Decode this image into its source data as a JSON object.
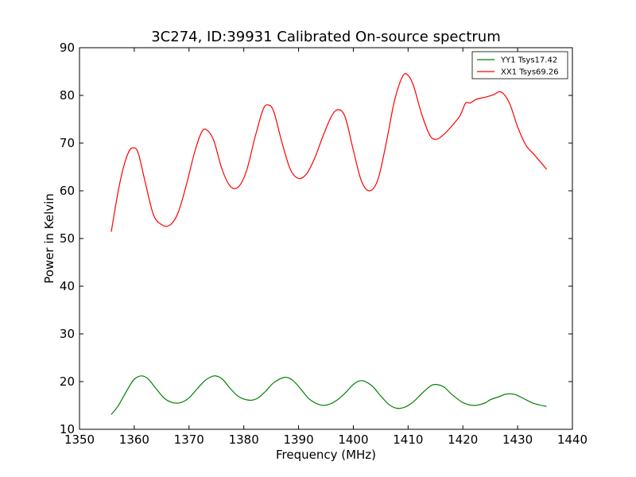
{
  "chart_data": {
    "type": "line",
    "title": "3C274, ID:39931 Calibrated On-source spectrum",
    "xlabel": "Frequency (MHz)",
    "ylabel": "Power in Kelvin",
    "xlim": [
      1350,
      1440
    ],
    "ylim": [
      10,
      90
    ],
    "xticks": [
      1350,
      1360,
      1370,
      1380,
      1390,
      1400,
      1410,
      1420,
      1430,
      1440
    ],
    "yticks": [
      10,
      20,
      30,
      40,
      50,
      60,
      70,
      80,
      90
    ],
    "grid": false,
    "legend_position": "top-right",
    "series": [
      {
        "name": "YY1 Tsys17.42",
        "color": "#008000",
        "x": [
          1355.8,
          1357.0,
          1358.0,
          1359.0,
          1360.0,
          1361.3,
          1362.5,
          1364.0,
          1365.5,
          1367.0,
          1368.5,
          1370.0,
          1371.5,
          1373.0,
          1374.6,
          1376.0,
          1377.5,
          1379.0,
          1381.0,
          1382.5,
          1384.0,
          1385.5,
          1387.5,
          1389.0,
          1390.5,
          1392.0,
          1394.0,
          1395.5,
          1397.0,
          1398.5,
          1400.0,
          1401.0,
          1402.0,
          1403.5,
          1405.0,
          1406.5,
          1408.0,
          1409.5,
          1411.0,
          1412.5,
          1414.0,
          1415.0,
          1416.5,
          1418.0,
          1420.0,
          1422.0,
          1424.0,
          1425.0,
          1426.5,
          1428.0,
          1429.5,
          1431.0,
          1433.0,
          1435.3
        ],
        "y": [
          13.1,
          14.8,
          16.8,
          18.8,
          20.5,
          21.2,
          20.6,
          18.5,
          16.5,
          15.6,
          15.6,
          16.6,
          18.5,
          20.3,
          21.2,
          20.6,
          18.6,
          16.9,
          16.1,
          16.5,
          18.0,
          19.8,
          20.9,
          20.2,
          18.3,
          16.3,
          15.1,
          15.2,
          16.1,
          17.6,
          19.4,
          20.1,
          20.1,
          19.0,
          17.0,
          15.2,
          14.4,
          14.7,
          15.8,
          17.5,
          19.0,
          19.4,
          18.9,
          17.3,
          15.6,
          15.0,
          15.5,
          16.2,
          16.8,
          17.4,
          17.3,
          16.5,
          15.4,
          14.8
        ]
      },
      {
        "name": "XX1 Tsys69.26",
        "color": "#ff0000",
        "x": [
          1355.8,
          1357.0,
          1358.0,
          1359.0,
          1359.8,
          1360.7,
          1362.0,
          1363.5,
          1365.0,
          1366.5,
          1368.0,
          1369.5,
          1371.0,
          1372.3,
          1373.2,
          1374.5,
          1376.0,
          1377.5,
          1379.0,
          1380.5,
          1382.0,
          1383.5,
          1384.5,
          1385.5,
          1387.0,
          1388.5,
          1390.0,
          1391.5,
          1393.0,
          1394.5,
          1396.0,
          1397.2,
          1398.5,
          1400.0,
          1401.5,
          1403.0,
          1404.5,
          1406.0,
          1407.5,
          1409.0,
          1410.0,
          1411.0,
          1412.5,
          1414.0,
          1415.2,
          1416.5,
          1418.0,
          1419.5,
          1420.5,
          1421.3,
          1422.5,
          1424.0,
          1425.5,
          1427.0,
          1428.5,
          1430.0,
          1431.5,
          1433.0,
          1435.3
        ],
        "y": [
          51.4,
          59.5,
          64.8,
          68.2,
          69.0,
          68.0,
          61.8,
          55.0,
          52.9,
          52.8,
          55.4,
          61.2,
          68.0,
          72.3,
          72.8,
          70.6,
          64.6,
          61.0,
          60.8,
          64.2,
          71.0,
          77.0,
          78.0,
          76.5,
          70.0,
          64.5,
          62.6,
          63.6,
          67.0,
          71.6,
          75.6,
          77.0,
          75.5,
          68.5,
          62.0,
          60.0,
          62.4,
          70.0,
          78.8,
          84.0,
          84.2,
          82.0,
          76.0,
          71.6,
          70.8,
          71.8,
          73.6,
          75.8,
          78.4,
          78.4,
          79.2,
          79.6,
          80.1,
          80.7,
          78.4,
          73.4,
          69.6,
          67.6,
          64.5
        ]
      }
    ]
  }
}
